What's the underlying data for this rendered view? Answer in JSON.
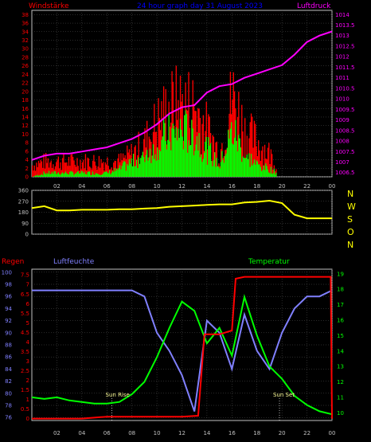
{
  "header": {
    "left": "Windstärke",
    "center": "24 hour graph day 31 August 2023",
    "right": "Luftdruck"
  },
  "lower_header": {
    "left": "Regen",
    "middle": "Luftfeuchte",
    "right": "Temperatur"
  },
  "colors": {
    "wind_gust": "#ff0000",
    "wind_avg": "#00ff00",
    "pressure": "#ff00ff",
    "direction": "#ffff00",
    "humidity": "#8080ff",
    "temperature": "#00ff00",
    "rain": "#ff0000",
    "grid": "#555555",
    "frame": "#c0c0c0",
    "axis_text": "#c0c0c0"
  },
  "chart_data": [
    {
      "type": "bar",
      "panel": "wind-pressure",
      "x_ticks": [
        "02",
        "04",
        "06",
        "08",
        "10",
        "12",
        "14",
        "16",
        "18",
        "20",
        "22",
        "00"
      ],
      "wind_axis": {
        "label": "Windstärke",
        "ticks": [
          0,
          2,
          4,
          6,
          8,
          10,
          12,
          14,
          16,
          18,
          20,
          22,
          24,
          26,
          28,
          30,
          32,
          34,
          36,
          38
        ],
        "ylim": [
          0,
          39
        ]
      },
      "pressure_axis": {
        "label": "Luftdruck",
        "ticks": [
          "1006.5",
          "1007",
          "1007.5",
          "1008",
          "1008.5",
          "1009",
          "1009.5",
          "1010",
          "1010.5",
          "1011",
          "1011.5",
          "1012",
          "1012.5",
          "1013",
          "1013.5",
          "1014"
        ],
        "ylim": [
          1006.3,
          1014.2
        ]
      },
      "series": [
        {
          "name": "gust",
          "x": [
            0,
            1,
            2,
            3,
            4,
            5,
            6,
            7,
            8,
            9,
            10,
            11,
            12,
            13,
            14,
            15,
            16,
            17,
            18,
            19,
            20,
            21,
            22,
            23,
            24
          ],
          "values": [
            3,
            4,
            4,
            4,
            4,
            4,
            4,
            4,
            6,
            9,
            14,
            18,
            19,
            18,
            12,
            6,
            21,
            12,
            9,
            6,
            0,
            0,
            0,
            0,
            0
          ]
        },
        {
          "name": "average",
          "x": [
            0,
            1,
            2,
            3,
            4,
            5,
            6,
            7,
            8,
            9,
            10,
            11,
            12,
            13,
            14,
            15,
            16,
            17,
            18,
            19,
            20,
            21,
            22,
            23,
            24
          ],
          "values": [
            0,
            1,
            1,
            1,
            1,
            1,
            1,
            2,
            4,
            6,
            9,
            11,
            12,
            11,
            7,
            3,
            12,
            6,
            3,
            2,
            0,
            0,
            0,
            0,
            0
          ]
        },
        {
          "name": "pressure",
          "x": [
            0,
            1,
            2,
            3,
            4,
            5,
            6,
            7,
            8,
            9,
            10,
            11,
            12,
            13,
            14,
            15,
            16,
            17,
            18,
            19,
            20,
            21,
            22,
            23,
            24
          ],
          "values": [
            1007.1,
            1007.3,
            1007.4,
            1007.4,
            1007.5,
            1007.6,
            1007.7,
            1007.9,
            1008.1,
            1008.4,
            1008.8,
            1009.3,
            1009.6,
            1009.7,
            1010.3,
            1010.6,
            1010.7,
            1011.0,
            1011.2,
            1011.4,
            1011.6,
            1012.1,
            1012.7,
            1013.0,
            1013.2
          ]
        }
      ]
    },
    {
      "type": "line",
      "panel": "direction",
      "x_ticks": [
        "02",
        "04",
        "06",
        "08",
        "10",
        "12",
        "14",
        "16",
        "18",
        "20",
        "22",
        "00"
      ],
      "y_ticks": [
        0,
        90,
        180,
        270,
        360
      ],
      "ylim": [
        0,
        360
      ],
      "right_labels": [
        "N",
        "W",
        "S",
        "O",
        "N"
      ],
      "series": [
        {
          "name": "direction",
          "x": [
            0,
            1,
            2,
            3,
            4,
            5,
            6,
            7,
            8,
            9,
            10,
            11,
            12,
            13,
            14,
            15,
            16,
            17,
            18,
            19,
            20,
            21,
            22,
            23,
            24
          ],
          "values": [
            215,
            230,
            195,
            195,
            200,
            200,
            200,
            205,
            205,
            210,
            215,
            225,
            230,
            235,
            240,
            245,
            245,
            260,
            265,
            275,
            255,
            160,
            130,
            130,
            130
          ]
        }
      ]
    },
    {
      "type": "line",
      "panel": "humidity-temp-rain",
      "x_ticks": [
        "02",
        "04",
        "06",
        "08",
        "10",
        "12",
        "14",
        "16",
        "18",
        "20",
        "22",
        "00"
      ],
      "humidity_axis": {
        "ticks": [
          76,
          78,
          80,
          82,
          84,
          86,
          88,
          90,
          92,
          94,
          96,
          98,
          100
        ],
        "ylim": [
          75.5,
          100.5
        ]
      },
      "rain_axis": {
        "ticks": [
          "0",
          "0.5",
          "1",
          "1.5",
          "2",
          "2.5",
          "3",
          "3.5",
          "4",
          "4.5",
          "5",
          "5.5",
          "6",
          "6.5",
          "7",
          "7.5"
        ],
        "ylim": [
          -0.1,
          7.8
        ]
      },
      "temperature_axis": {
        "ticks": [
          10,
          11,
          12,
          13,
          14,
          15,
          16,
          17,
          18,
          19
        ],
        "ylim": [
          9.5,
          19.3
        ]
      },
      "annotations": [
        {
          "text": "Sun Rise",
          "x": 6.4
        },
        {
          "text": "Sun Set",
          "x": 19.8
        }
      ],
      "series": [
        {
          "name": "humidity",
          "x": [
            0,
            1,
            2,
            3,
            4,
            5,
            6,
            7,
            8,
            9,
            10,
            11,
            12,
            13,
            14,
            15,
            16,
            17,
            18,
            19,
            20,
            21,
            22,
            23,
            24
          ],
          "values": [
            97,
            97,
            97,
            97,
            97,
            97,
            97,
            97,
            97,
            96,
            90,
            87,
            83,
            77,
            92,
            90,
            84,
            93,
            87,
            84,
            90,
            94,
            96,
            96,
            97
          ]
        },
        {
          "name": "temperature",
          "x": [
            0,
            1,
            2,
            3,
            4,
            5,
            6,
            7,
            8,
            9,
            10,
            11,
            12,
            13,
            14,
            15,
            16,
            17,
            18,
            19,
            20,
            21,
            22,
            23,
            24
          ],
          "values": [
            11.0,
            10.9,
            11.0,
            10.8,
            10.7,
            10.6,
            10.6,
            10.7,
            11.2,
            12.0,
            13.6,
            15.5,
            17.2,
            16.6,
            14.5,
            15.5,
            13.7,
            17.5,
            15.0,
            13.0,
            12.2,
            11.1,
            10.5,
            10.1,
            9.9
          ]
        },
        {
          "name": "rain",
          "x": [
            0,
            2,
            4,
            6,
            8,
            10,
            12,
            13.3,
            13.8,
            14,
            15,
            16,
            16.3,
            17,
            18,
            20,
            22,
            23.9,
            24
          ],
          "values": [
            0,
            0,
            0,
            0.1,
            0.1,
            0.1,
            0.1,
            0.15,
            4.4,
            4.4,
            4.4,
            4.6,
            7.3,
            7.4,
            7.4,
            7.4,
            7.4,
            7.4,
            0
          ]
        }
      ]
    }
  ]
}
